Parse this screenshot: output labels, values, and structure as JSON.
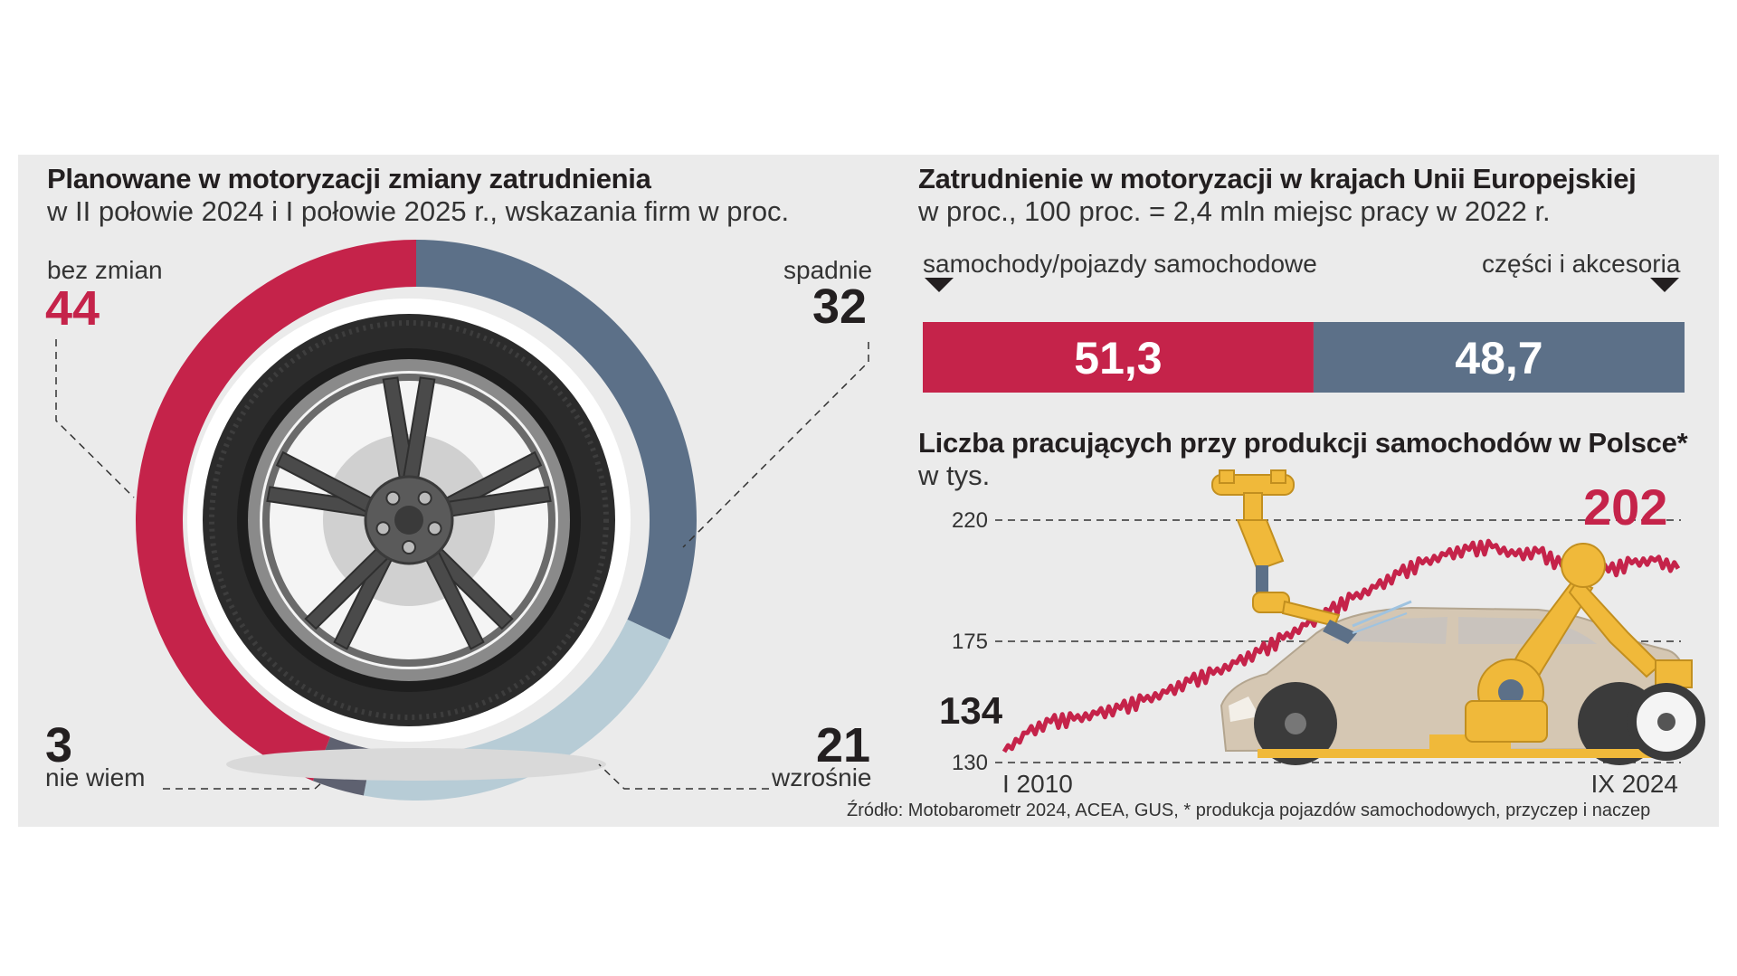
{
  "colors": {
    "red": "#c5234a",
    "slate": "#5c7088",
    "light_blue": "#b7ccd6",
    "dark_gray": "#5e6170",
    "background": "#ebebeb",
    "robot_yellow": "#f0b93a",
    "car_body": "#d5c7b3"
  },
  "left": {
    "title": "Planowane w motoryzacji zmiany zatrudnienia",
    "subtitle": "w II połowie 2024 i I połowie 2025 r., wskazania firm w proc.",
    "illustration": "car-tire-icon"
  },
  "right": {
    "title": "Zatrudnienie w motoryzacji w krajach Unii Europejskiej",
    "subtitle": "w proc., 100 proc. = 2,4 mln miejsc pracy w 2022 r.",
    "bar_label_left": "samochody/pojazdy samochodowe",
    "bar_label_right": "części i akcesoria",
    "line_title": "Liczba pracujących przy produkcji samochodów w Polsce*",
    "line_subtitle": "w tys.",
    "illustration": "robot-arm-car-icon"
  },
  "source": "Źródło: Motobarometr 2024, ACEA, GUS, * produkcja pojazdów samochodowych, przyczep i naczep",
  "chart_data": [
    {
      "type": "pie",
      "style": "donut",
      "slices": [
        {
          "label": "spadnie",
          "value": 32,
          "value_text": "32",
          "color": "#5c7088"
        },
        {
          "label": "wzrośnie",
          "value": 21,
          "value_text": "21",
          "color": "#b7ccd6"
        },
        {
          "label": "nie wiem",
          "value": 3,
          "value_text": "3",
          "color": "#5e6170"
        },
        {
          "label": "bez zmian",
          "value": 44,
          "value_text": "44",
          "color": "#c5234a"
        }
      ]
    },
    {
      "type": "bar",
      "orientation": "horizontal-stacked",
      "segments": [
        {
          "label": "samochody/pojazdy samochodowe",
          "value": 51.3,
          "value_text": "51,3",
          "color": "#c5234a"
        },
        {
          "label": "części i akcesoria",
          "value": 48.7,
          "value_text": "48,7",
          "color": "#5c7088"
        }
      ]
    },
    {
      "type": "line",
      "x_start": "I 2010",
      "x_end": "IX 2024",
      "x_tick_labels": [
        "I 2010",
        "IX 2024"
      ],
      "y_ticks": [
        130,
        175,
        220
      ],
      "y_tick_labels": [
        "130",
        "175",
        "220"
      ],
      "ylim": [
        130,
        220
      ],
      "grid": "dashed",
      "start_value": 134,
      "start_label": "134",
      "end_value": 202,
      "end_label": "202",
      "x_month_index": [
        0,
        6,
        12,
        18,
        24,
        30,
        36,
        42,
        48,
        54,
        60,
        66,
        72,
        78,
        84,
        90,
        96,
        102,
        108,
        114,
        120,
        126,
        132,
        138,
        144,
        150,
        156,
        162,
        168,
        174
      ],
      "values": [
        134,
        141,
        145,
        146,
        148,
        150,
        153,
        156,
        160,
        163,
        167,
        171,
        176,
        181,
        186,
        191,
        195,
        200,
        204,
        207,
        209,
        210,
        207,
        208,
        203,
        205,
        201,
        204,
        205,
        202
      ]
    }
  ]
}
